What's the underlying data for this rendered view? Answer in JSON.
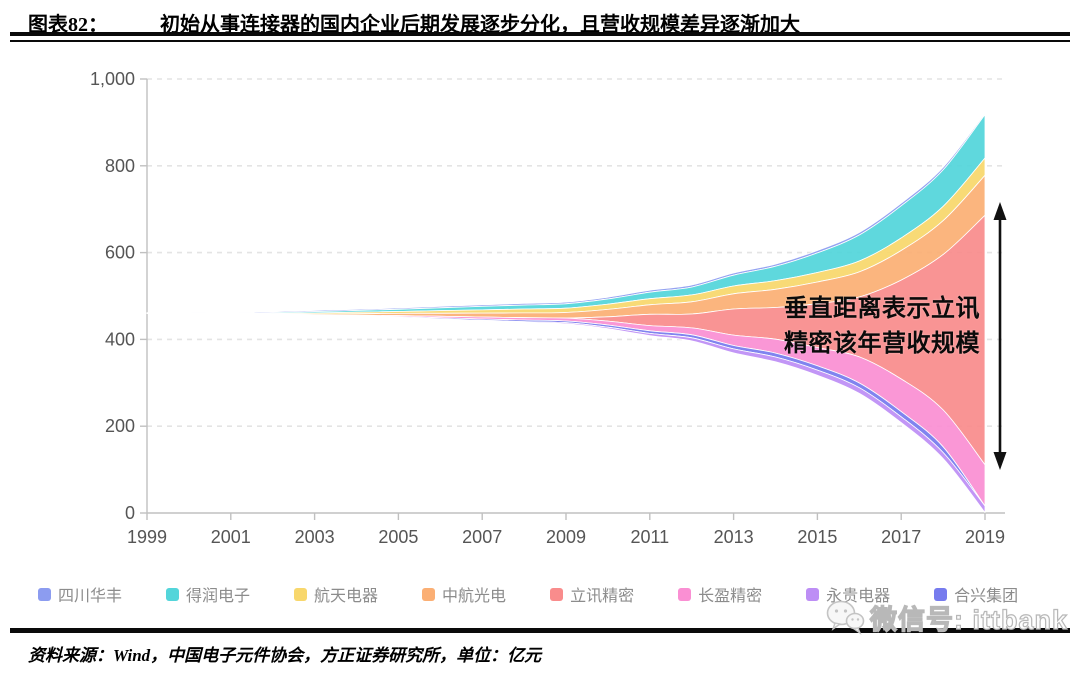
{
  "header": {
    "label": "图表82：",
    "title": "初始从事连接器的国内企业后期发展逐步分化，且营收规模差异逐渐加大"
  },
  "annotation": {
    "line1": "垂直距离表示立讯",
    "line2": "精密该年营收规模"
  },
  "watermark": {
    "text": "微信号: ittbank",
    "icon": "wechat-icon"
  },
  "footer": {
    "source": "资料来源：Wind，中国电子元件协会，方正证券研究所，单位：亿元"
  },
  "chart_data": {
    "type": "area",
    "variant": "streamgraph-themeriver",
    "title": "",
    "xlabel": "",
    "ylabel": "",
    "unit": "亿元",
    "x": [
      1999,
      2000,
      2001,
      2002,
      2003,
      2004,
      2005,
      2006,
      2007,
      2008,
      2009,
      2010,
      2011,
      2012,
      2013,
      2014,
      2015,
      2016,
      2017,
      2018,
      2019
    ],
    "x_tick_labels": [
      "1999",
      "2001",
      "2003",
      "2005",
      "2007",
      "2009",
      "2011",
      "2013",
      "2015",
      "2017",
      "2019"
    ],
    "x_ticks": [
      1999,
      2001,
      2003,
      2005,
      2007,
      2009,
      2011,
      2013,
      2015,
      2017,
      2019
    ],
    "ylim": [
      0,
      1000
    ],
    "y_ticks": [
      0,
      200,
      400,
      600,
      800,
      1000
    ],
    "y_tick_labels": [
      "0",
      "200",
      "400",
      "600",
      "800",
      "1,000"
    ],
    "grid": "dashed-horizontal",
    "legend_position": "bottom",
    "center_value": 461,
    "stack_order_top_to_bottom": [
      "四川华丰",
      "得润电子",
      "航天电器",
      "中航光电",
      "立讯精密",
      "长盈精密",
      "合兴集团",
      "永贵电器"
    ],
    "series": [
      {
        "name": "四川华丰",
        "color": "#8c9cf0",
        "values": [
          1.5,
          1.8,
          2.0,
          2.2,
          2.5,
          2.8,
          3.0,
          3.2,
          3.5,
          3.8,
          4.0,
          4.2,
          4.5,
          4.8,
          5.0,
          5.2,
          5.5,
          5.8,
          6.0,
          6.0,
          3.0
        ]
      },
      {
        "name": "得润电子",
        "color": "#53d5da",
        "values": [
          0,
          0,
          1.0,
          2.0,
          3.0,
          4.0,
          5.0,
          6.5,
          8.0,
          9.0,
          10,
          12,
          15,
          18,
          25,
          33,
          45,
          60,
          74,
          84,
          100
        ]
      },
      {
        "name": "航天电器",
        "color": "#f8d76c",
        "values": [
          0,
          0,
          0,
          1.5,
          2.5,
          3.5,
          4.5,
          6.0,
          7.5,
          9.0,
          10,
          12,
          14,
          16,
          18,
          20,
          22,
          25,
          29,
          33,
          40
        ]
      },
      {
        "name": "中航光电",
        "color": "#fbaf74",
        "values": [
          0,
          0,
          0,
          0,
          2.0,
          3.5,
          5.0,
          7.0,
          9.0,
          11,
          13,
          17,
          22,
          28,
          35,
          42,
          50,
          58,
          68,
          78,
          92
        ]
      },
      {
        "name": "立讯精密",
        "color": "#f98c8c",
        "values": [
          0,
          0,
          0,
          0,
          0,
          0,
          0,
          0,
          0,
          0,
          0,
          10,
          26,
          32,
          60,
          73,
          101,
          138,
          228,
          358,
          575
        ]
      },
      {
        "name": "长盈精密",
        "color": "#fa8fd3",
        "values": [
          0,
          0,
          0,
          0,
          0,
          1.5,
          2.5,
          3.5,
          4.5,
          5.5,
          6.5,
          9,
          12,
          16,
          24,
          32,
          42,
          60,
          75,
          85,
          95
        ]
      },
      {
        "name": "永贵电器",
        "color": "#bd8ef5",
        "values": [
          0,
          0,
          0,
          0,
          0,
          0,
          0.8,
          1.2,
          1.6,
          2.0,
          2.5,
          3.5,
          5,
          7,
          9,
          11,
          12,
          13,
          13.5,
          14,
          15
        ]
      },
      {
        "name": "合兴集团",
        "color": "#767bee",
        "values": [
          0,
          0,
          0,
          0,
          1.0,
          1.5,
          2.0,
          2.5,
          3.0,
          3.5,
          4.0,
          5,
          6,
          7,
          8,
          9,
          10,
          11,
          12,
          13,
          0
        ]
      }
    ],
    "annotation_text": "垂直距离表示立讯精密该年营收规模",
    "arrow": {
      "meaning": "vertical span of 立讯精密 band in 2019"
    }
  },
  "colors": {
    "axis": "#c0c0c0",
    "grid": "#e4e4e4",
    "tick_label": "#555555",
    "legend_label": "#8c8c8c",
    "rule": "#0a0a0a"
  }
}
